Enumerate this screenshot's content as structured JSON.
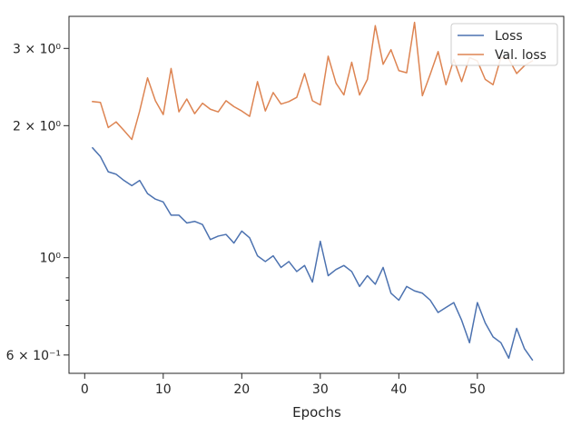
{
  "chart_data": {
    "type": "line",
    "title": "",
    "xlabel": "Epochs",
    "ylabel": "",
    "xlim": [
      -2,
      61
    ],
    "ylim": [
      0.545,
      3.55
    ],
    "yscale": "log",
    "grid": false,
    "legend_position": "top-right",
    "x_ticks": [
      0,
      10,
      20,
      30,
      40,
      50
    ],
    "y_ticks_major": [
      {
        "value": 0.6,
        "label": "6 × 10⁻¹"
      },
      {
        "value": 1,
        "label": "10⁰"
      },
      {
        "value": 2,
        "label": "2 × 10⁰"
      },
      {
        "value": 3,
        "label": "3 × 10⁰"
      }
    ],
    "y_ticks_minor": [
      0.7,
      0.8,
      0.9
    ],
    "x": [
      1,
      2,
      3,
      4,
      5,
      6,
      7,
      8,
      9,
      10,
      11,
      12,
      13,
      14,
      15,
      16,
      17,
      18,
      19,
      20,
      21,
      22,
      23,
      24,
      25,
      26,
      27,
      28,
      29,
      30,
      31,
      32,
      33,
      34,
      35,
      36,
      37,
      38,
      39,
      40,
      41,
      42,
      43,
      44,
      45,
      46,
      47,
      48,
      49,
      50,
      51,
      52,
      53,
      54,
      55,
      56,
      57
    ],
    "series": [
      {
        "name": "Loss",
        "color": "#4c72b0",
        "values": [
          1.78,
          1.7,
          1.57,
          1.55,
          1.5,
          1.46,
          1.5,
          1.4,
          1.36,
          1.34,
          1.25,
          1.25,
          1.2,
          1.21,
          1.19,
          1.1,
          1.12,
          1.13,
          1.08,
          1.15,
          1.11,
          1.01,
          0.98,
          1.01,
          0.95,
          0.98,
          0.93,
          0.96,
          0.88,
          1.09,
          0.91,
          0.94,
          0.96,
          0.93,
          0.86,
          0.91,
          0.87,
          0.95,
          0.83,
          0.8,
          0.86,
          0.84,
          0.83,
          0.8,
          0.75,
          0.77,
          0.79,
          0.72,
          0.64,
          0.79,
          0.71,
          0.66,
          0.64,
          0.59,
          0.69,
          0.62,
          0.585
        ]
      },
      {
        "name": "Val. loss",
        "color": "#dd8452",
        "values": [
          2.27,
          2.26,
          1.98,
          2.04,
          1.95,
          1.86,
          2.16,
          2.57,
          2.28,
          2.12,
          2.7,
          2.15,
          2.3,
          2.13,
          2.25,
          2.18,
          2.15,
          2.28,
          2.21,
          2.16,
          2.1,
          2.52,
          2.16,
          2.38,
          2.24,
          2.27,
          2.32,
          2.63,
          2.28,
          2.23,
          2.88,
          2.5,
          2.35,
          2.79,
          2.35,
          2.55,
          3.38,
          2.76,
          2.98,
          2.67,
          2.64,
          3.44,
          2.34,
          2.62,
          2.95,
          2.48,
          2.83,
          2.52,
          2.86,
          2.81,
          2.55,
          2.48,
          2.86,
          2.84,
          2.63,
          2.74,
          2.81
        ]
      }
    ]
  }
}
